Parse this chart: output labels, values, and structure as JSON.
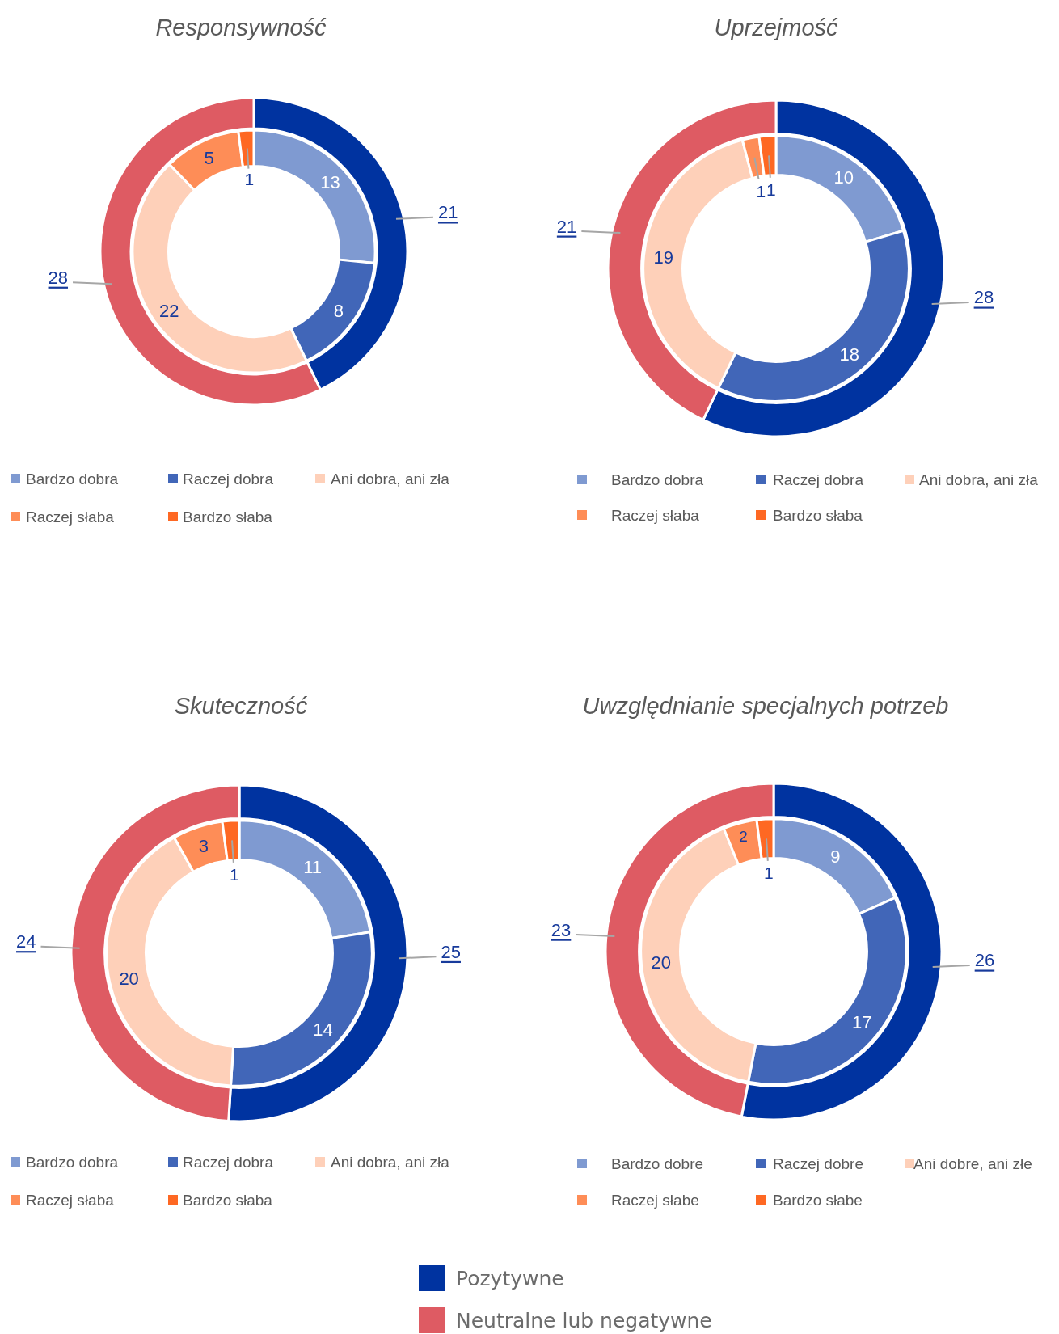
{
  "chart_data": [
    {
      "type": "donut",
      "title": "Responsywność",
      "categories": [
        null,
        null
      ],
      "values": [
        21,
        28
      ],
      "colors": [
        "#0033a0",
        "#de5b63"
      ],
      "data_labels": true
    },
    {
      "type": "donut",
      "categories": [
        "Bardzo dobra",
        "Raczej dobra",
        "Ani dobra, ani zła",
        "Raczej słaba",
        "Bardzo słaba"
      ],
      "values": [
        13,
        8,
        22,
        5,
        1
      ],
      "colors": [
        "#7f9ad1",
        "#4166b8",
        "#fed0b9",
        "#fe8d57",
        "#fe6823"
      ],
      "data_labels": true,
      "legend": "bottom"
    },
    {
      "type": "donut",
      "title": "Uprzejmość",
      "categories": [
        null,
        null
      ],
      "values": [
        28,
        21
      ],
      "colors": [
        "#0033a0",
        "#de5b63"
      ],
      "data_labels": true
    },
    {
      "type": "donut",
      "categories": [
        "Bardzo dobra",
        "Raczej dobra",
        "Ani dobra, ani zła",
        "Raczej słaba",
        "Bardzo słaba"
      ],
      "values": [
        10,
        18,
        19,
        1,
        1
      ],
      "colors": [
        "#7f9ad1",
        "#4166b8",
        "#fed0b9",
        "#fe8d57",
        "#fe6823"
      ],
      "data_labels": true,
      "legend": "bottom"
    },
    {
      "type": "donut",
      "title": "Skuteczność",
      "categories": [
        null,
        null
      ],
      "values": [
        25,
        24
      ],
      "colors": [
        "#0033a0",
        "#de5b63"
      ],
      "data_labels": true
    },
    {
      "type": "donut",
      "categories": [
        "Bardzo dobra",
        "Raczej dobra",
        "Ani dobra, ani zła",
        "Raczej słaba",
        "Bardzo słaba"
      ],
      "values": [
        11,
        14,
        20,
        3,
        1
      ],
      "colors": [
        "#7f9ad1",
        "#4166b8",
        "#fed0b9",
        "#fe8d57",
        "#fe6823"
      ],
      "data_labels": true,
      "legend": "bottom"
    },
    {
      "type": "donut",
      "title": "Uwzględnianie specjalnych potrzeb",
      "categories": [
        "Pozytywne",
        "Neutralne lub negatywne"
      ],
      "values": [
        26,
        23
      ],
      "colors": [
        "#0033a0",
        "#de5b63"
      ],
      "data_labels": true,
      "legend": "bottom"
    },
    {
      "type": "donut",
      "categories": [
        "Bardzo dobre",
        "Raczej dobre",
        "Ani dobre, ani złe",
        "Raczej słabe",
        "Bardzo słabe"
      ],
      "values": [
        9,
        17,
        20,
        2,
        1
      ],
      "colors": [
        "#7f9ad1",
        "#4166b8",
        "#fed0b9",
        "#fe8d57",
        "#fe6823"
      ],
      "data_labels": true,
      "legend": "bottom"
    }
  ]
}
